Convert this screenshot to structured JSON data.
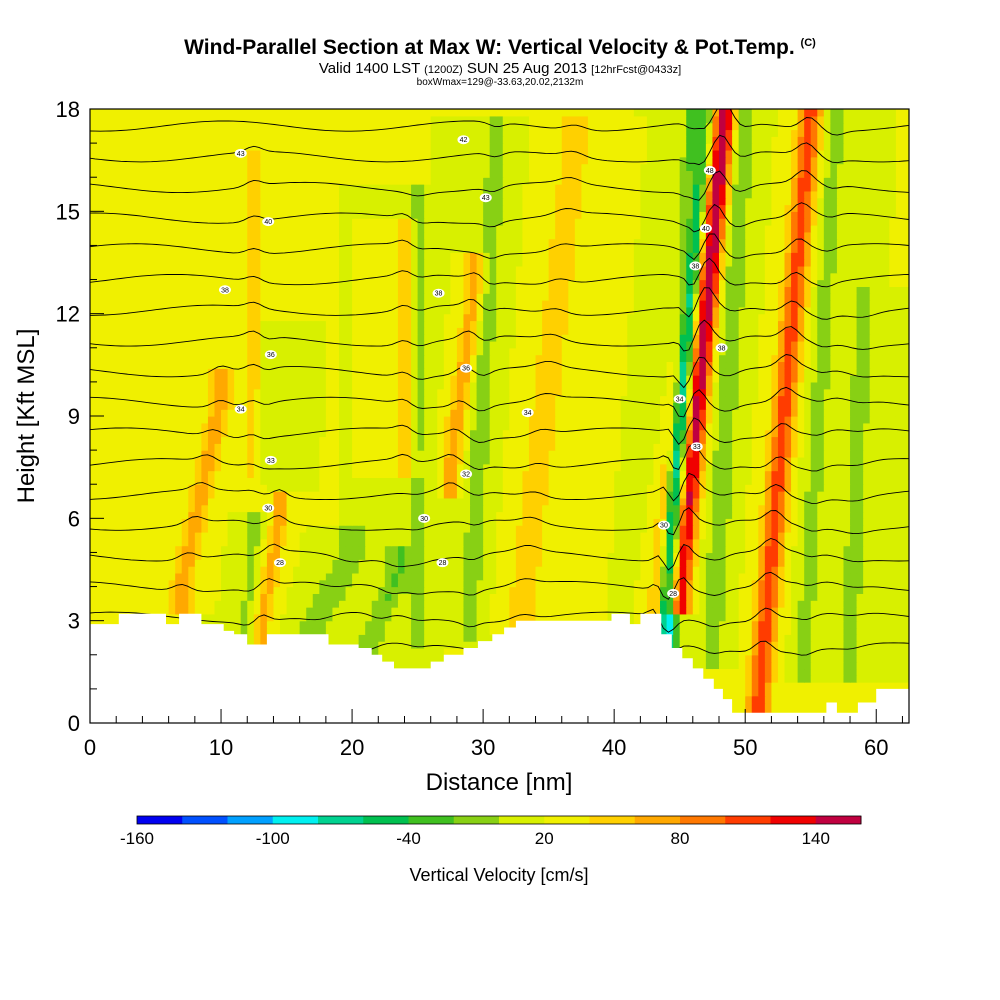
{
  "header": {
    "title": "Wind-Parallel Section at Max W: Vertical Velocity & Pot.Temp.",
    "title_suffix": "(C)",
    "valid_prefix": "Valid 1400 LST",
    "valid_utc": "(1200Z)",
    "valid_date": "SUN 25 Aug 2013",
    "forecast": "[12hrFcst@0433z]",
    "box_info": "boxWmax=129@-33.63,20.02,2132m"
  },
  "chart_data": {
    "type": "heatmap",
    "xlabel": "Distance [nm]",
    "ylabel": "Height [Kft MSL]",
    "xlim": [
      0,
      62.5
    ],
    "ylim": [
      0,
      18
    ],
    "x_ticks": [
      0,
      10,
      20,
      30,
      40,
      50,
      60
    ],
    "y_ticks": [
      0,
      3,
      6,
      9,
      12,
      15,
      18
    ],
    "x_tick_labels": [
      "0",
      "10",
      "20",
      "30",
      "40",
      "50",
      "60"
    ],
    "y_tick_labels": [
      "0",
      "3",
      "6",
      "9",
      "12",
      "15",
      "18"
    ],
    "background_value": 20,
    "colorbar": {
      "label": "Vertical Velocity [cm/s]",
      "tick_labels": [
        "-160",
        "-100",
        "-40",
        "20",
        "80",
        "140"
      ],
      "tick_values": [
        -160,
        -100,
        -40,
        20,
        80,
        140
      ],
      "range": [
        -160,
        160
      ],
      "colors": [
        "#0000f0",
        "#0050ff",
        "#00a0ff",
        "#00f0f0",
        "#00d290",
        "#00c050",
        "#40c020",
        "#88d014",
        "#d8f000",
        "#f0f000",
        "#ffd000",
        "#ffa800",
        "#ff7800",
        "#ff3c00",
        "#f00000",
        "#c00040"
      ]
    },
    "features": [
      {
        "name": "updraft",
        "from": [
          7,
          4
        ],
        "to": [
          10,
          9.5
        ],
        "half_width_nm": 0.9,
        "value": 50
      },
      {
        "name": "downdraft",
        "from": [
          12,
          3
        ],
        "to": [
          13.5,
          11
        ],
        "half_width_nm": 0.8,
        "value": -25
      },
      {
        "name": "updraft",
        "from": [
          13,
          2.8
        ],
        "to": [
          14.5,
          6
        ],
        "half_width_nm": 0.7,
        "value": 50
      },
      {
        "name": "updraft",
        "from": [
          12.5,
          7
        ],
        "to": [
          12.5,
          16
        ],
        "half_width_nm": 0.8,
        "value": 40
      },
      {
        "name": "downdraft",
        "from": [
          17,
          2.8
        ],
        "to": [
          20,
          5
        ],
        "half_width_nm": 1.4,
        "value": -35
      },
      {
        "name": "downdraft",
        "from": [
          21,
          2
        ],
        "to": [
          23.5,
          4.5
        ],
        "half_width_nm": 1.0,
        "value": -40
      },
      {
        "name": "updraft",
        "from": [
          24,
          8
        ],
        "to": [
          24,
          14
        ],
        "half_width_nm": 0.8,
        "value": 40
      },
      {
        "name": "downdraft",
        "from": [
          25,
          3
        ],
        "to": [
          25,
          15
        ],
        "half_width_nm": 1.0,
        "value": -25
      },
      {
        "name": "updraft",
        "from": [
          27.5,
          7.5
        ],
        "to": [
          29.5,
          13
        ],
        "half_width_nm": 0.8,
        "value": 50
      },
      {
        "name": "downdraft",
        "from": [
          29,
          3.2
        ],
        "to": [
          31,
          17
        ],
        "half_width_nm": 0.8,
        "value": -35
      },
      {
        "name": "updraft",
        "from": [
          33,
          3.5
        ],
        "to": [
          37,
          17
        ],
        "half_width_nm": 1.1,
        "value": 40
      },
      {
        "name": "updraft",
        "from": [
          43,
          3
        ],
        "to": [
          46.5,
          18
        ],
        "half_width_nm": 0.5,
        "value": 60
      },
      {
        "name": "downdraft",
        "from": [
          44,
          2.5
        ],
        "to": [
          46.5,
          18
        ],
        "half_width_nm": 0.8,
        "value": -110
      },
      {
        "name": "updraft",
        "from": [
          45,
          4
        ],
        "to": [
          48.5,
          18
        ],
        "half_width_nm": 0.8,
        "value": 140
      },
      {
        "name": "downdraft",
        "from": [
          47.5,
          2.5
        ],
        "to": [
          50,
          18
        ],
        "half_width_nm": 0.9,
        "value": -35
      },
      {
        "name": "updraft",
        "from": [
          51,
          0.5
        ],
        "to": [
          55,
          18
        ],
        "half_width_nm": 0.9,
        "value": 90
      },
      {
        "name": "downdraft",
        "from": [
          54.5,
          2
        ],
        "to": [
          57,
          18
        ],
        "half_width_nm": 0.8,
        "value": -30
      },
      {
        "name": "downdraft",
        "from": [
          58,
          2
        ],
        "to": [
          59,
          12
        ],
        "half_width_nm": 1.2,
        "value": -25
      }
    ],
    "terrain": [
      [
        0,
        2.9
      ],
      [
        2.2,
        2.9
      ],
      [
        2.2,
        3.2
      ],
      [
        5.8,
        3.2
      ],
      [
        5.8,
        2.9
      ],
      [
        6.8,
        2.9
      ],
      [
        6.8,
        3.2
      ],
      [
        8.5,
        3.2
      ],
      [
        8.5,
        2.9
      ],
      [
        10.2,
        2.9
      ],
      [
        10.2,
        2.7
      ],
      [
        11,
        2.7
      ],
      [
        11,
        2.6
      ],
      [
        12,
        2.6
      ],
      [
        12,
        2.3
      ],
      [
        13.5,
        2.3
      ],
      [
        13.5,
        2.6
      ],
      [
        18.2,
        2.6
      ],
      [
        18.2,
        2.3
      ],
      [
        20.5,
        2.3
      ],
      [
        20.5,
        2.2
      ],
      [
        21.5,
        2.2
      ],
      [
        21.5,
        2.0
      ],
      [
        22.3,
        2.0
      ],
      [
        22.3,
        1.8
      ],
      [
        23.2,
        1.8
      ],
      [
        23.2,
        1.6
      ],
      [
        26,
        1.6
      ],
      [
        26,
        1.8
      ],
      [
        27,
        1.8
      ],
      [
        27,
        2.0
      ],
      [
        28.5,
        2.0
      ],
      [
        28.5,
        2.2
      ],
      [
        29.6,
        2.2
      ],
      [
        29.6,
        2.4
      ],
      [
        30.7,
        2.4
      ],
      [
        30.7,
        2.6
      ],
      [
        31.6,
        2.6
      ],
      [
        31.6,
        2.8
      ],
      [
        32.5,
        2.8
      ],
      [
        32.5,
        3.0
      ],
      [
        39.8,
        3.0
      ],
      [
        39.8,
        3.2
      ],
      [
        41.2,
        3.2
      ],
      [
        41.2,
        2.9
      ],
      [
        42,
        2.9
      ],
      [
        42,
        3.2
      ],
      [
        43.6,
        3.2
      ],
      [
        43.6,
        2.6
      ],
      [
        44.4,
        2.6
      ],
      [
        44.4,
        2.2
      ],
      [
        45.2,
        2.2
      ],
      [
        45.2,
        1.9
      ],
      [
        46.0,
        1.9
      ],
      [
        46.0,
        1.6
      ],
      [
        46.8,
        1.6
      ],
      [
        46.8,
        1.3
      ],
      [
        47.6,
        1.3
      ],
      [
        47.6,
        1.0
      ],
      [
        48.3,
        1.0
      ],
      [
        48.3,
        0.7
      ],
      [
        49.0,
        0.7
      ],
      [
        49.0,
        0.3
      ],
      [
        56.2,
        0.3
      ],
      [
        56.2,
        0.6
      ],
      [
        57.0,
        0.6
      ],
      [
        57.0,
        0.3
      ],
      [
        58.6,
        0.3
      ],
      [
        58.6,
        0.6
      ],
      [
        60.0,
        0.6
      ],
      [
        60.0,
        1.0
      ],
      [
        62.5,
        1.0
      ]
    ],
    "theta_contours": {
      "count": 18,
      "base_height_kft": 2.2,
      "spacing_kft": 0.9,
      "line_color": "#000000",
      "labels": [
        {
          "text": "43",
          "x": 11.5,
          "y": 16.7
        },
        {
          "text": "42",
          "x": 28.5,
          "y": 17.1
        },
        {
          "text": "43",
          "x": 30.2,
          "y": 15.4
        },
        {
          "text": "40",
          "x": 13.6,
          "y": 14.7
        },
        {
          "text": "38",
          "x": 10.3,
          "y": 12.7
        },
        {
          "text": "38",
          "x": 26.6,
          "y": 12.6
        },
        {
          "text": "36",
          "x": 13.8,
          "y": 10.8
        },
        {
          "text": "36",
          "x": 28.7,
          "y": 10.4
        },
        {
          "text": "34",
          "x": 11.5,
          "y": 9.2
        },
        {
          "text": "34",
          "x": 33.4,
          "y": 9.1
        },
        {
          "text": "33",
          "x": 13.8,
          "y": 7.7
        },
        {
          "text": "32",
          "x": 28.7,
          "y": 7.3
        },
        {
          "text": "30",
          "x": 13.6,
          "y": 6.3
        },
        {
          "text": "30",
          "x": 25.5,
          "y": 6.0
        },
        {
          "text": "28",
          "x": 14.5,
          "y": 4.7
        },
        {
          "text": "28",
          "x": 26.9,
          "y": 4.7
        },
        {
          "text": "48",
          "x": 47.3,
          "y": 16.2
        },
        {
          "text": "40",
          "x": 47.0,
          "y": 14.5
        },
        {
          "text": "38",
          "x": 46.2,
          "y": 13.4
        },
        {
          "text": "38",
          "x": 48.2,
          "y": 11.0
        },
        {
          "text": "34",
          "x": 45.0,
          "y": 9.5
        },
        {
          "text": "33",
          "x": 46.3,
          "y": 8.1
        },
        {
          "text": "30",
          "x": 43.8,
          "y": 5.8
        },
        {
          "text": "28",
          "x": 44.5,
          "y": 3.8
        }
      ]
    }
  }
}
